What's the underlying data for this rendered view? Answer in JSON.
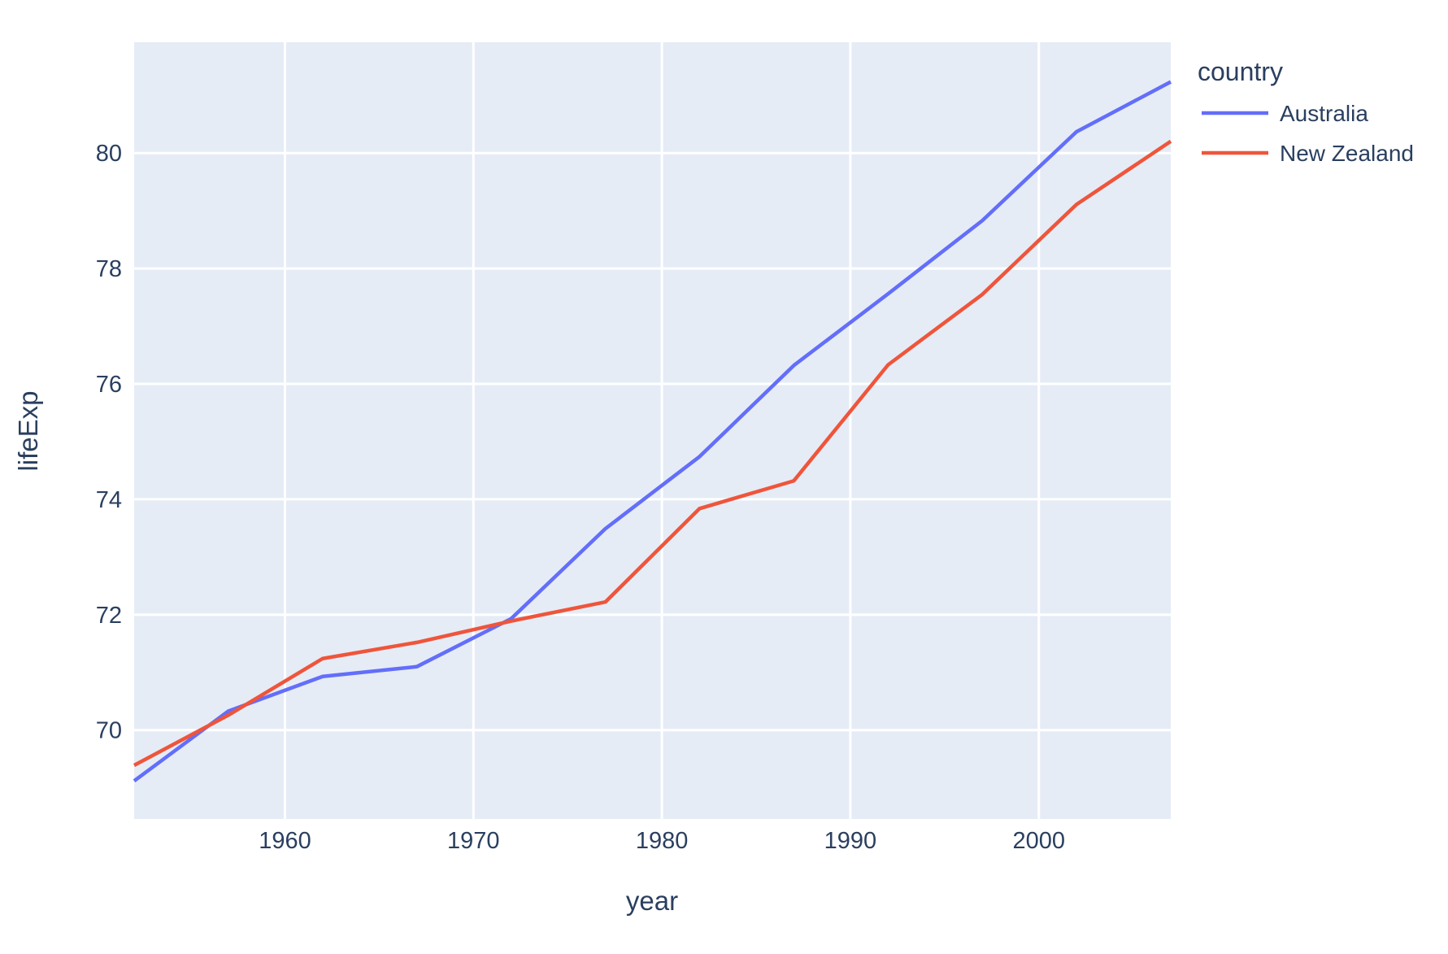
{
  "chart_data": {
    "type": "line",
    "title": "",
    "xlabel": "year",
    "ylabel": "lifeExp",
    "legend_title": "country",
    "legend_position": "top-right",
    "grid": true,
    "x": [
      1952,
      1957,
      1962,
      1967,
      1972,
      1977,
      1982,
      1987,
      1992,
      1997,
      2002,
      2007
    ],
    "series": [
      {
        "name": "Australia",
        "color": "#636efa",
        "values": [
          69.12,
          70.33,
          70.93,
          71.1,
          71.93,
          73.49,
          74.74,
          76.32,
          77.56,
          78.83,
          80.37,
          81.235
        ]
      },
      {
        "name": "New Zealand",
        "color": "#ef553b",
        "values": [
          69.39,
          70.26,
          71.24,
          71.52,
          71.89,
          72.22,
          73.84,
          74.32,
          76.33,
          77.55,
          79.11,
          80.204
        ]
      }
    ],
    "x_ticks": [
      1960,
      1970,
      1980,
      1990,
      2000
    ],
    "y_ticks": [
      70,
      72,
      74,
      76,
      78,
      80
    ],
    "xlim": [
      1952,
      2007
    ],
    "ylim": [
      68.46,
      81.92
    ],
    "colors": {
      "plot_background": "#e5ecf6",
      "page_background": "#ffffff",
      "grid": "#ffffff",
      "text": "#2a3f5f"
    }
  }
}
